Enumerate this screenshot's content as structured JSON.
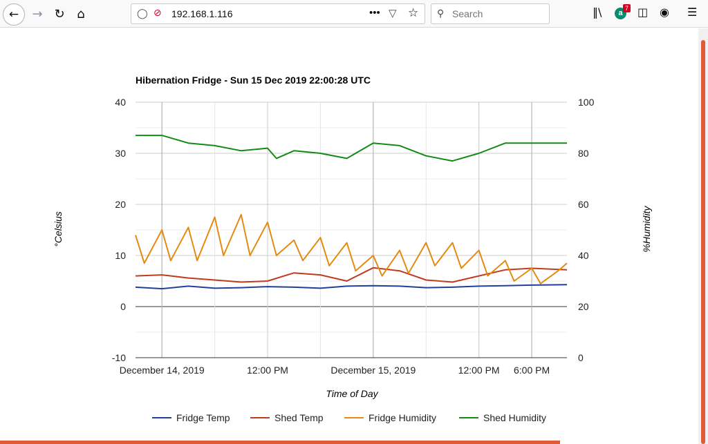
{
  "browser": {
    "url": "192.168.1.116",
    "search_placeholder": "Search",
    "addon_badge": "7",
    "addon_letter": "a",
    "icons": [
      "back-arrow-icon",
      "forward-arrow-icon",
      "reload-icon",
      "home-icon",
      "shield-icon",
      "insecure-lock-icon",
      "page-actions-icon",
      "pocket-icon",
      "bookmark-star-icon",
      "search-icon",
      "library-icon",
      "addon-icon",
      "sidebar-icon",
      "account-icon",
      "menu-icon"
    ]
  },
  "chart_data": {
    "type": "line",
    "title": "Hibernation Fridge - Sun 15 Dec 2019 22:00:28 UTC",
    "xlabel": "Time of Day",
    "ylabel_left": "°Celsius",
    "ylabel_right": "%Humidity",
    "x_range": [
      "2019-12-13 21:00",
      "2019-12-15 22:00"
    ],
    "ylim_left": [
      -10,
      40
    ],
    "ylim_right": [
      0,
      100
    ],
    "yticks_left": [
      "-10",
      "0",
      "10",
      "20",
      "30",
      "40"
    ],
    "yticks_right": [
      "0",
      "20",
      "40",
      "60",
      "80",
      "100"
    ],
    "xticks": [
      {
        "t": "2019-12-14 00:00",
        "label": "December 14, 2019"
      },
      {
        "t": "2019-12-14 12:00",
        "label": "12:00 PM"
      },
      {
        "t": "2019-12-15 00:00",
        "label": "December 15, 2019"
      },
      {
        "t": "2019-12-15 12:00",
        "label": "12:00 PM"
      },
      {
        "t": "2019-12-15 18:00",
        "label": "6:00 PM"
      }
    ],
    "grid": true,
    "legend_position": "bottom",
    "series": [
      {
        "name": "Fridge Temp",
        "axis": "left",
        "color": "#1f3f9a",
        "points": [
          [
            "2019-12-13 21:00",
            3.8
          ],
          [
            "2019-12-14 00:00",
            3.5
          ],
          [
            "2019-12-14 03:00",
            4.0
          ],
          [
            "2019-12-14 06:00",
            3.6
          ],
          [
            "2019-12-14 09:00",
            3.7
          ],
          [
            "2019-12-14 12:00",
            3.9
          ],
          [
            "2019-12-14 15:00",
            3.8
          ],
          [
            "2019-12-14 18:00",
            3.6
          ],
          [
            "2019-12-14 21:00",
            4.0
          ],
          [
            "2019-12-15 00:00",
            4.1
          ],
          [
            "2019-12-15 03:00",
            4.0
          ],
          [
            "2019-12-15 06:00",
            3.7
          ],
          [
            "2019-12-15 09:00",
            3.8
          ],
          [
            "2019-12-15 12:00",
            4.0
          ],
          [
            "2019-12-15 15:00",
            4.1
          ],
          [
            "2019-12-15 18:00",
            4.2
          ],
          [
            "2019-12-15 22:00",
            4.3
          ]
        ]
      },
      {
        "name": "Shed Temp",
        "axis": "left",
        "color": "#c23a1e",
        "points": [
          [
            "2019-12-13 21:00",
            6.0
          ],
          [
            "2019-12-14 00:00",
            6.2
          ],
          [
            "2019-12-14 03:00",
            5.6
          ],
          [
            "2019-12-14 06:00",
            5.2
          ],
          [
            "2019-12-14 09:00",
            4.8
          ],
          [
            "2019-12-14 12:00",
            5.0
          ],
          [
            "2019-12-14 15:00",
            6.6
          ],
          [
            "2019-12-14 18:00",
            6.2
          ],
          [
            "2019-12-14 21:00",
            5.0
          ],
          [
            "2019-12-15 00:00",
            7.6
          ],
          [
            "2019-12-15 03:00",
            7.0
          ],
          [
            "2019-12-15 06:00",
            5.2
          ],
          [
            "2019-12-15 09:00",
            4.8
          ],
          [
            "2019-12-15 12:00",
            6.0
          ],
          [
            "2019-12-15 15:00",
            7.2
          ],
          [
            "2019-12-15 18:00",
            7.5
          ],
          [
            "2019-12-15 22:00",
            7.2
          ]
        ]
      },
      {
        "name": "Fridge Humidity",
        "axis": "right",
        "color": "#e58a10",
        "points": [
          [
            "2019-12-13 21:00",
            48
          ],
          [
            "2019-12-13 22:00",
            37
          ],
          [
            "2019-12-14 00:00",
            50
          ],
          [
            "2019-12-14 01:00",
            38
          ],
          [
            "2019-12-14 03:00",
            51
          ],
          [
            "2019-12-14 04:00",
            38
          ],
          [
            "2019-12-14 06:00",
            55
          ],
          [
            "2019-12-14 07:00",
            40
          ],
          [
            "2019-12-14 09:00",
            56
          ],
          [
            "2019-12-14 10:00",
            40
          ],
          [
            "2019-12-14 12:00",
            53
          ],
          [
            "2019-12-14 13:00",
            40
          ],
          [
            "2019-12-14 15:00",
            46
          ],
          [
            "2019-12-14 16:00",
            38
          ],
          [
            "2019-12-14 18:00",
            47
          ],
          [
            "2019-12-14 19:00",
            36
          ],
          [
            "2019-12-14 21:00",
            45
          ],
          [
            "2019-12-14 22:00",
            34
          ],
          [
            "2019-12-15 00:00",
            40
          ],
          [
            "2019-12-15 01:00",
            32
          ],
          [
            "2019-12-15 03:00",
            42
          ],
          [
            "2019-12-15 04:00",
            33
          ],
          [
            "2019-12-15 06:00",
            45
          ],
          [
            "2019-12-15 07:00",
            36
          ],
          [
            "2019-12-15 09:00",
            45
          ],
          [
            "2019-12-15 10:00",
            35
          ],
          [
            "2019-12-15 12:00",
            42
          ],
          [
            "2019-12-15 13:00",
            32
          ],
          [
            "2019-12-15 15:00",
            38
          ],
          [
            "2019-12-15 16:00",
            30
          ],
          [
            "2019-12-15 18:00",
            35
          ],
          [
            "2019-12-15 19:00",
            29
          ],
          [
            "2019-12-15 21:00",
            34
          ],
          [
            "2019-12-15 22:00",
            37
          ]
        ]
      },
      {
        "name": "Shed Humidity",
        "axis": "right",
        "color": "#138a13",
        "points": [
          [
            "2019-12-13 21:00",
            87
          ],
          [
            "2019-12-14 00:00",
            87
          ],
          [
            "2019-12-14 03:00",
            84
          ],
          [
            "2019-12-14 06:00",
            83
          ],
          [
            "2019-12-14 09:00",
            81
          ],
          [
            "2019-12-14 12:00",
            82
          ],
          [
            "2019-12-14 13:00",
            78
          ],
          [
            "2019-12-14 15:00",
            81
          ],
          [
            "2019-12-14 18:00",
            80
          ],
          [
            "2019-12-14 21:00",
            78
          ],
          [
            "2019-12-15 00:00",
            84
          ],
          [
            "2019-12-15 03:00",
            83
          ],
          [
            "2019-12-15 06:00",
            79
          ],
          [
            "2019-12-15 09:00",
            77
          ],
          [
            "2019-12-15 12:00",
            80
          ],
          [
            "2019-12-15 15:00",
            84
          ],
          [
            "2019-12-15 18:00",
            84
          ],
          [
            "2019-12-15 22:00",
            84
          ]
        ]
      }
    ]
  }
}
